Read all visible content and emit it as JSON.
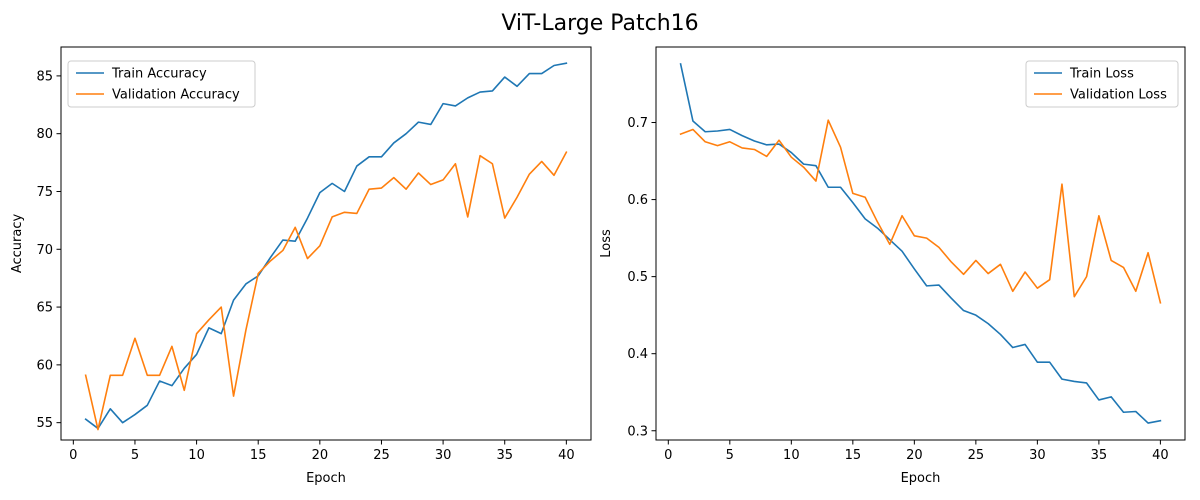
{
  "suptitle": "ViT-Large Patch16",
  "chart_data": [
    {
      "type": "line",
      "xlabel": "Epoch",
      "ylabel": "Accuracy",
      "xlim": [
        -1,
        42
      ],
      "ylim": [
        53.5,
        87.5
      ],
      "xticks": [
        0,
        5,
        10,
        15,
        20,
        25,
        30,
        35,
        40
      ],
      "yticks": [
        55,
        60,
        65,
        70,
        75,
        80,
        85
      ],
      "grid": false,
      "legend_position": "upper-left",
      "x": [
        1,
        2,
        3,
        4,
        5,
        6,
        7,
        8,
        9,
        10,
        11,
        12,
        13,
        14,
        15,
        16,
        17,
        18,
        19,
        20,
        21,
        22,
        23,
        24,
        25,
        26,
        27,
        28,
        29,
        30,
        31,
        32,
        33,
        34,
        35,
        36,
        37,
        38,
        39,
        40
      ],
      "series": [
        {
          "name": "Train Accuracy",
          "color": "#1f77b4",
          "values": [
            55.3,
            54.5,
            56.2,
            55.0,
            55.7,
            56.5,
            58.6,
            58.2,
            59.7,
            60.9,
            63.2,
            62.7,
            65.6,
            67.0,
            67.7,
            69.3,
            70.8,
            70.7,
            72.7,
            74.9,
            75.7,
            75.0,
            77.2,
            78.0,
            78.0,
            79.2,
            80.0,
            81.0,
            80.8,
            82.6,
            82.4,
            83.1,
            83.6,
            83.7,
            84.9,
            84.1,
            85.2,
            85.2,
            85.9,
            86.1
          ]
        },
        {
          "name": "Validation Accuracy",
          "color": "#ff7f0e",
          "values": [
            59.1,
            54.4,
            59.1,
            59.1,
            62.3,
            59.1,
            59.1,
            61.6,
            57.8,
            62.7,
            63.9,
            65.0,
            57.3,
            63.0,
            67.9,
            69.0,
            69.9,
            71.9,
            69.2,
            70.3,
            72.8,
            73.2,
            73.1,
            75.2,
            75.3,
            76.2,
            75.2,
            76.6,
            75.6,
            76.0,
            77.4,
            72.8,
            78.1,
            77.4,
            72.7,
            74.5,
            76.5,
            77.6,
            76.4,
            78.4
          ]
        }
      ]
    },
    {
      "type": "line",
      "xlabel": "Epoch",
      "ylabel": "Loss",
      "xlim": [
        -1,
        42
      ],
      "ylim": [
        0.288,
        0.798
      ],
      "xticks": [
        0,
        5,
        10,
        15,
        20,
        25,
        30,
        35,
        40
      ],
      "yticks": [
        0.3,
        0.4,
        0.5,
        0.6,
        0.7
      ],
      "ytick_labels": [
        "0.3",
        "0.4",
        "0.5",
        "0.6",
        "0.7"
      ],
      "grid": false,
      "legend_position": "upper-right",
      "x": [
        1,
        2,
        3,
        4,
        5,
        6,
        7,
        8,
        9,
        10,
        11,
        12,
        13,
        14,
        15,
        16,
        17,
        18,
        19,
        20,
        21,
        22,
        23,
        24,
        25,
        26,
        27,
        28,
        29,
        30,
        31,
        32,
        33,
        34,
        35,
        36,
        37,
        38,
        39,
        40
      ],
      "series": [
        {
          "name": "Train Loss",
          "color": "#1f77b4",
          "values": [
            0.776,
            0.702,
            0.688,
            0.689,
            0.691,
            0.683,
            0.676,
            0.671,
            0.672,
            0.661,
            0.646,
            0.644,
            0.616,
            0.616,
            0.596,
            0.575,
            0.563,
            0.548,
            0.533,
            0.51,
            0.488,
            0.489,
            0.472,
            0.456,
            0.45,
            0.439,
            0.425,
            0.408,
            0.412,
            0.389,
            0.389,
            0.367,
            0.364,
            0.362,
            0.34,
            0.344,
            0.324,
            0.325,
            0.31,
            0.313
          ]
        },
        {
          "name": "Validation Loss",
          "color": "#ff7f0e",
          "values": [
            0.685,
            0.691,
            0.675,
            0.67,
            0.675,
            0.667,
            0.665,
            0.656,
            0.677,
            0.655,
            0.642,
            0.624,
            0.703,
            0.668,
            0.608,
            0.603,
            0.571,
            0.542,
            0.579,
            0.553,
            0.55,
            0.538,
            0.519,
            0.503,
            0.521,
            0.504,
            0.516,
            0.481,
            0.506,
            0.485,
            0.496,
            0.62,
            0.474,
            0.5,
            0.579,
            0.521,
            0.512,
            0.481,
            0.531,
            0.466
          ]
        }
      ]
    }
  ]
}
